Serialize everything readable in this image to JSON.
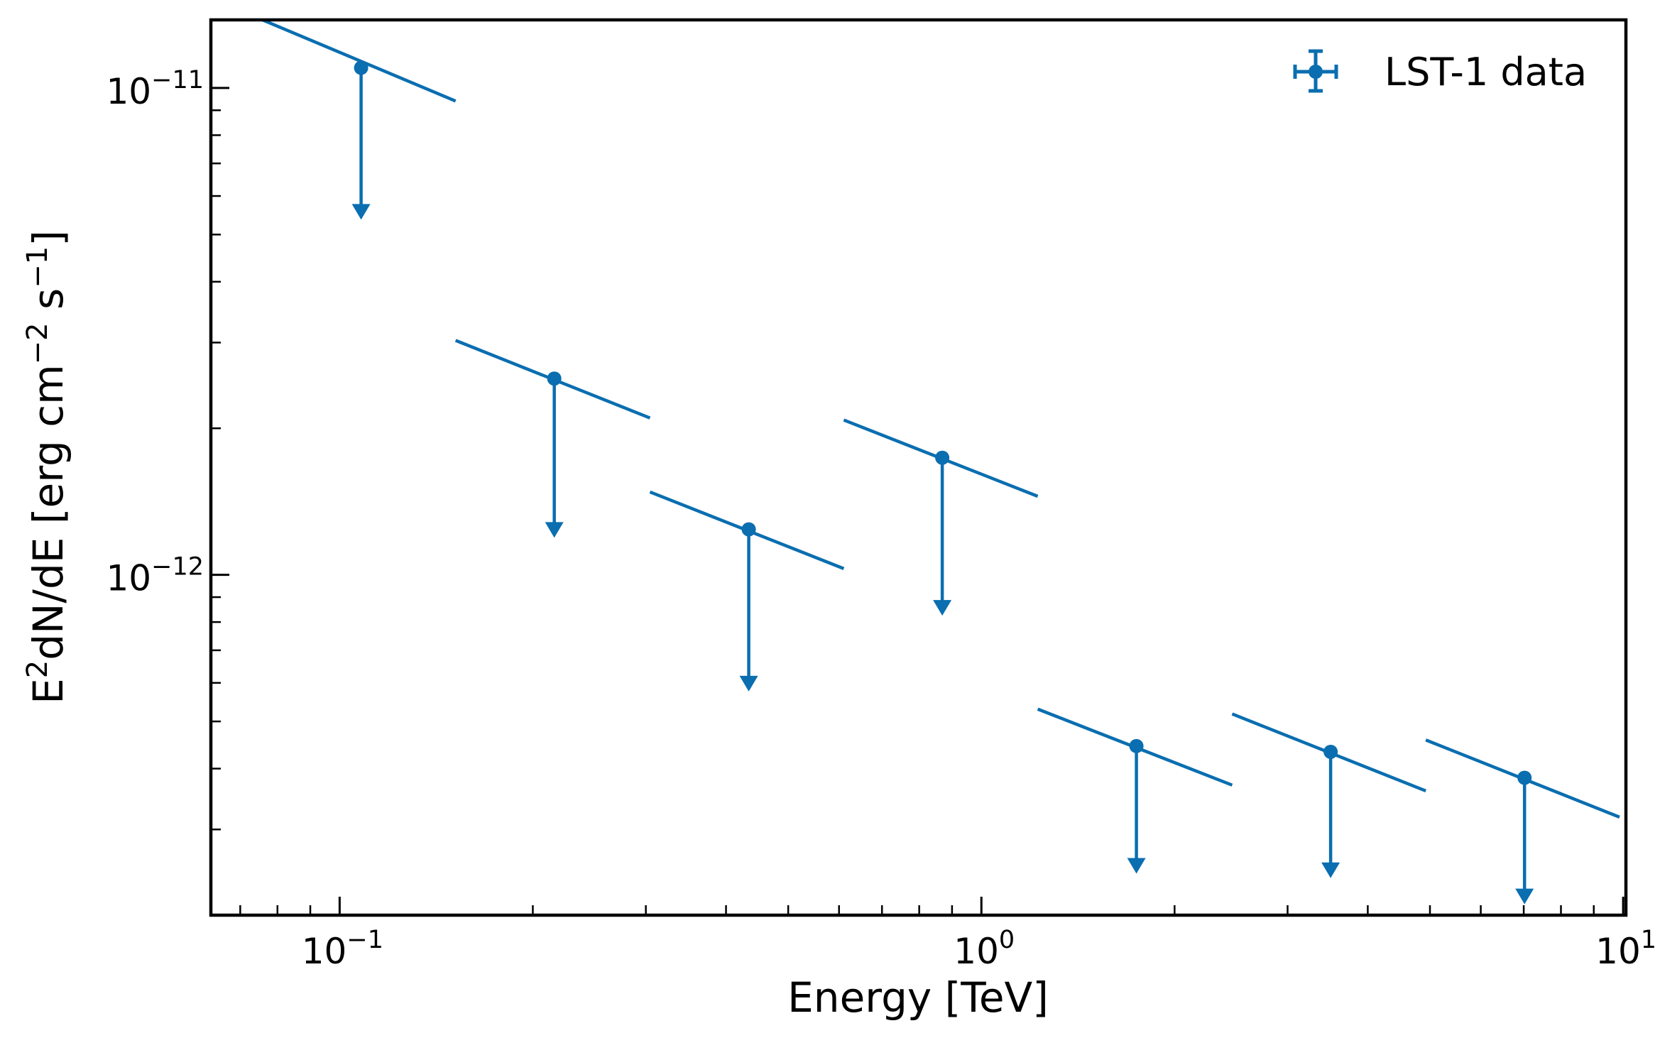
{
  "chart_data": {
    "type": "scatter",
    "title": "",
    "xlabel": "Energy [TeV]",
    "ylabel_parts": {
      "pre": "E",
      "sup1": "2",
      "mid": "dN/dE [erg cm",
      "sup2": "−2",
      "mid2": " s",
      "sup3": "−1",
      "post": "]"
    },
    "xscale": "log",
    "yscale": "log",
    "xlim": [
      0.063,
      10.1
    ],
    "ylim": [
      2e-13,
      1.38e-11
    ],
    "x_tick_labels": [
      {
        "value": 0.1,
        "base": "10",
        "exp": "−1"
      },
      {
        "value": 1,
        "base": "10",
        "exp": "0"
      },
      {
        "value": 10,
        "base": "10",
        "exp": "1"
      }
    ],
    "y_tick_labels": [
      {
        "value": 1e-11,
        "base": "10",
        "exp": "−11"
      },
      {
        "value": 1e-12,
        "base": "10",
        "exp": "−12"
      }
    ],
    "legend": {
      "position": "top-right",
      "label": "LST-1 data"
    },
    "color": "#0a6eb0",
    "series": [
      {
        "name": "LST-1 data",
        "upper_limits": true,
        "points": [
          {
            "energy": 0.108,
            "e_min": 0.0758,
            "e_max": 0.1516,
            "flux": 1.1e-11,
            "flux_start": 1.38e-11,
            "flux_end": 9.4e-12,
            "arrow_to": 5.4e-12
          },
          {
            "energy": 0.216,
            "e_min": 0.1516,
            "e_max": 0.3045,
            "flux": 2.53e-12,
            "flux_start": 3.03e-12,
            "flux_end": 2.1e-12,
            "arrow_to": 1.2e-12
          },
          {
            "energy": 0.434,
            "e_min": 0.3045,
            "e_max": 0.6103,
            "flux": 1.24e-12,
            "flux_start": 1.48e-12,
            "flux_end": 1.03e-12,
            "arrow_to": 5.8e-13
          },
          {
            "energy": 0.869,
            "e_min": 0.6103,
            "e_max": 1.224,
            "flux": 1.74e-12,
            "flux_start": 2.08e-12,
            "flux_end": 1.45e-12,
            "arrow_to": 8.3e-13
          },
          {
            "energy": 1.744,
            "e_min": 1.224,
            "e_max": 2.459,
            "flux": 4.45e-13,
            "flux_start": 5.3e-13,
            "flux_end": 3.7e-13,
            "arrow_to": 2.45e-13
          },
          {
            "energy": 3.501,
            "e_min": 2.459,
            "e_max": 4.926,
            "flux": 4.33e-13,
            "flux_start": 5.18e-13,
            "flux_end": 3.6e-13,
            "arrow_to": 2.4e-13
          },
          {
            "energy": 7.02,
            "e_min": 4.926,
            "e_max": 9.87,
            "flux": 3.83e-13,
            "flux_start": 4.58e-13,
            "flux_end": 3.18e-13,
            "arrow_to": 2.12e-13
          }
        ]
      }
    ]
  }
}
